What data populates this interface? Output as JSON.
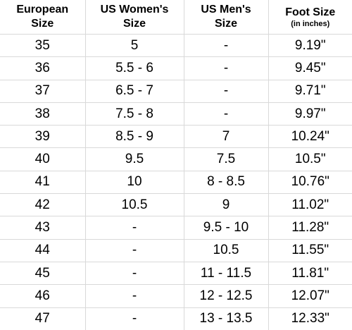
{
  "table": {
    "headers": [
      {
        "line1": "European",
        "line2": "Size",
        "sub": ""
      },
      {
        "line1": "US Women's",
        "line2": "Size",
        "sub": ""
      },
      {
        "line1": "US Men's",
        "line2": "Size",
        "sub": ""
      },
      {
        "line1": "Foot Size",
        "line2": "",
        "sub": "(in inches)"
      }
    ],
    "rows": [
      [
        "35",
        "5",
        "-",
        "9.19\""
      ],
      [
        "36",
        "5.5 - 6",
        "-",
        "9.45\""
      ],
      [
        "37",
        "6.5 - 7",
        "-",
        "9.71\""
      ],
      [
        "38",
        "7.5 - 8",
        "-",
        "9.97\""
      ],
      [
        "39",
        "8.5 - 9",
        "7",
        "10.24\""
      ],
      [
        "40",
        "9.5",
        "7.5",
        "10.5\""
      ],
      [
        "41",
        "10",
        "8 - 8.5",
        "10.76\""
      ],
      [
        "42",
        "10.5",
        "9",
        "11.02\""
      ],
      [
        "43",
        "-",
        "9.5 - 10",
        "11.28\""
      ],
      [
        "44",
        "-",
        "10.5",
        "11.55\""
      ],
      [
        "45",
        "-",
        "11 - 11.5",
        "11.81\""
      ],
      [
        "46",
        "-",
        "12 - 12.5",
        "12.07\""
      ],
      [
        "47",
        "-",
        "13 - 13.5",
        "12.33\""
      ]
    ]
  }
}
